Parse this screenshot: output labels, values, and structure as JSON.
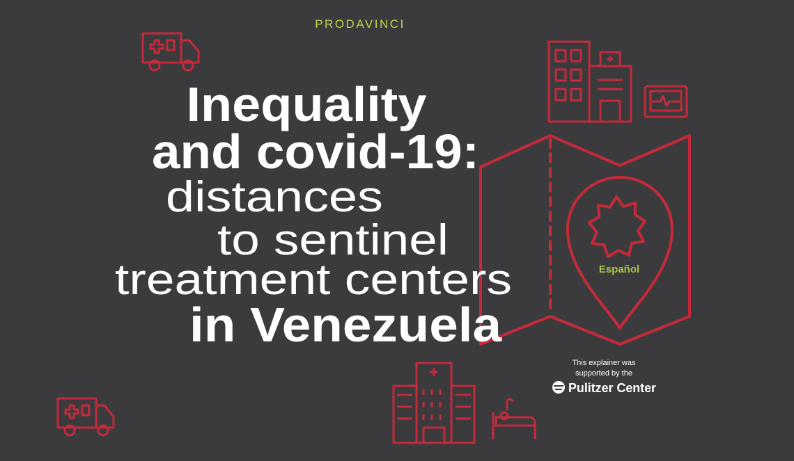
{
  "header": {
    "brand": "PRODAVINCI"
  },
  "title": {
    "lines": [
      "Inequality",
      "and covid-19:",
      "distances",
      "to sentinel",
      "treatment centers",
      "in Venezuela"
    ]
  },
  "language_link": "Español",
  "sponsor": {
    "note": [
      "This explainer was",
      "supported by the"
    ],
    "name": "Pulitzer Center"
  }
}
